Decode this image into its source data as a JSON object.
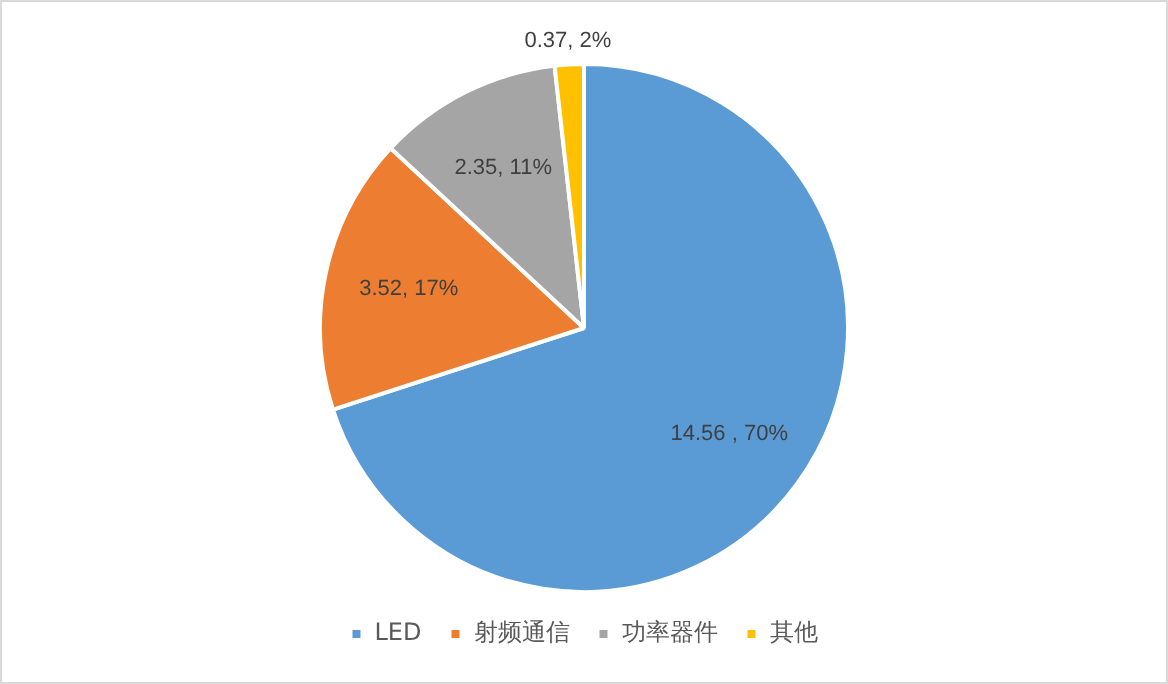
{
  "chart_data": {
    "type": "pie",
    "categories": [
      "LED",
      "射频通信",
      "功率器件",
      "其他"
    ],
    "values": [
      14.56,
      3.52,
      2.35,
      0.37
    ],
    "colors": [
      "#5b9bd5",
      "#ed7d31",
      "#a5a5a5",
      "#ffc000"
    ],
    "value_labels": [
      "14.56 , 70%",
      "3.52, 17%",
      "2.35, 11%",
      "0.37, 2%"
    ],
    "legend": "bottom"
  }
}
